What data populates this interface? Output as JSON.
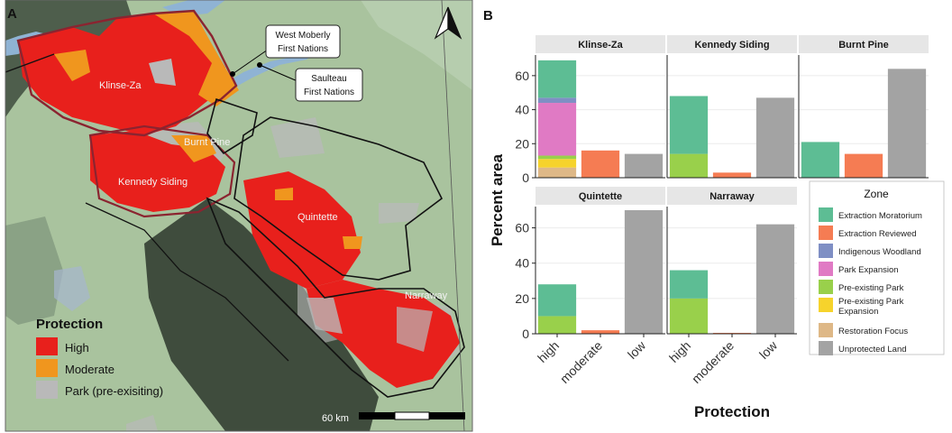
{
  "panels": {
    "a_label": "A",
    "b_label": "B"
  },
  "map": {
    "region_labels": {
      "klinse_za": "Klinse-Za",
      "burnt_pine": "Burnt Pine",
      "kennedy_siding": "Kennedy Siding",
      "quintette": "Quintette",
      "narraway": "Narraway"
    },
    "callouts": [
      {
        "line1": "West Moberly",
        "line2": "First Nations"
      },
      {
        "line1": "Saulteau",
        "line2": "First Nations"
      }
    ],
    "legend": {
      "title": "Protection",
      "items": [
        {
          "label": "High",
          "color": "#e8201c"
        },
        {
          "label": "Moderate",
          "color": "#f0961e"
        },
        {
          "label": "Park (pre-exisiting)",
          "color": "#b9b9b9"
        }
      ]
    },
    "scalebar": {
      "label": "60 km"
    },
    "north_arrow_icon": "north-arrow-icon"
  },
  "chart_data": {
    "type": "bar",
    "stacked": true,
    "facet_by": "herd",
    "xlabel": "Protection",
    "ylabel": "Percent area",
    "categories": [
      "high",
      "moderate",
      "low"
    ],
    "ylim": [
      0,
      70
    ],
    "yticks": [
      0,
      20,
      40,
      60
    ],
    "legend": {
      "title": "Zone",
      "placement": "right"
    },
    "zones": [
      {
        "name": "Extraction Moratorium",
        "color": "#5dbd94"
      },
      {
        "name": "Extraction Reviewed",
        "color": "#f57c53"
      },
      {
        "name": "Indigenous Woodland",
        "color": "#7f8fc4"
      },
      {
        "name": "Park Expansion",
        "color": "#e07ac4"
      },
      {
        "name": "Pre-existing Park",
        "color": "#99d04b"
      },
      {
        "name": "Pre-existing Park Expansion",
        "color": "#f6d32c"
      },
      {
        "name": "Restoration Focus",
        "color": "#deb887"
      },
      {
        "name": "Unprotected Land",
        "color": "#a3a3a3"
      }
    ],
    "facets": [
      {
        "name": "Klinse-Za",
        "bars": [
          {
            "category": "high",
            "segments": [
              {
                "zone": "Restoration Focus",
                "value": 6
              },
              {
                "zone": "Pre-existing Park Expansion",
                "value": 5
              },
              {
                "zone": "Pre-existing Park",
                "value": 2
              },
              {
                "zone": "Park Expansion",
                "value": 31
              },
              {
                "zone": "Indigenous Woodland",
                "value": 3
              },
              {
                "zone": "Extraction Moratorium",
                "value": 22
              }
            ]
          },
          {
            "category": "moderate",
            "segments": [
              {
                "zone": "Extraction Reviewed",
                "value": 16
              }
            ]
          },
          {
            "category": "low",
            "segments": [
              {
                "zone": "Unprotected Land",
                "value": 14
              }
            ]
          }
        ]
      },
      {
        "name": "Kennedy Siding",
        "bars": [
          {
            "category": "high",
            "segments": [
              {
                "zone": "Pre-existing Park",
                "value": 14
              },
              {
                "zone": "Extraction Moratorium",
                "value": 34
              }
            ]
          },
          {
            "category": "moderate",
            "segments": [
              {
                "zone": "Extraction Reviewed",
                "value": 3
              }
            ]
          },
          {
            "category": "low",
            "segments": [
              {
                "zone": "Unprotected Land",
                "value": 47
              }
            ]
          }
        ]
      },
      {
        "name": "Burnt Pine",
        "bars": [
          {
            "category": "high",
            "segments": [
              {
                "zone": "Extraction Moratorium",
                "value": 21
              }
            ]
          },
          {
            "category": "moderate",
            "segments": [
              {
                "zone": "Extraction Reviewed",
                "value": 14
              }
            ]
          },
          {
            "category": "low",
            "segments": [
              {
                "zone": "Unprotected Land",
                "value": 64
              }
            ]
          }
        ]
      },
      {
        "name": "Quintette",
        "bars": [
          {
            "category": "high",
            "segments": [
              {
                "zone": "Pre-existing Park",
                "value": 10
              },
              {
                "zone": "Extraction Moratorium",
                "value": 18
              }
            ]
          },
          {
            "category": "moderate",
            "segments": [
              {
                "zone": "Extraction Reviewed",
                "value": 2
              }
            ]
          },
          {
            "category": "low",
            "segments": [
              {
                "zone": "Unprotected Land",
                "value": 70
              }
            ]
          }
        ]
      },
      {
        "name": "Narraway",
        "bars": [
          {
            "category": "high",
            "segments": [
              {
                "zone": "Pre-existing Park",
                "value": 20
              },
              {
                "zone": "Extraction Moratorium",
                "value": 16
              }
            ]
          },
          {
            "category": "moderate",
            "segments": [
              {
                "zone": "Extraction Reviewed",
                "value": 0.5
              }
            ]
          },
          {
            "category": "low",
            "segments": [
              {
                "zone": "Unprotected Land",
                "value": 62
              }
            ]
          }
        ]
      }
    ]
  }
}
